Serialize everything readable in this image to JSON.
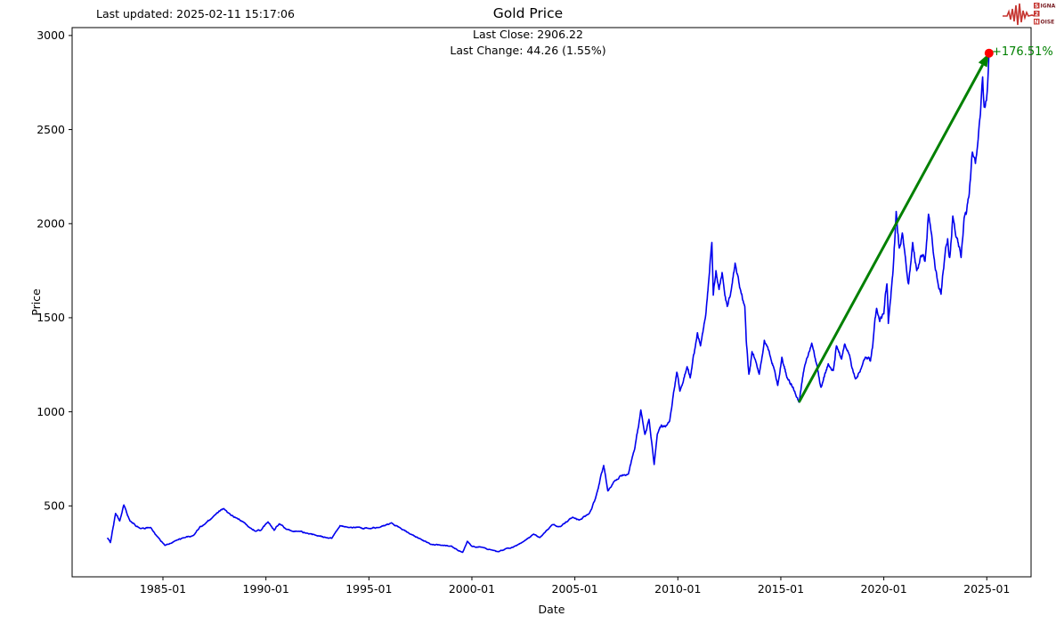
{
  "header": {
    "last_updated": "Last updated: 2025-02-11 15:17:06",
    "title": "Gold Price",
    "subtitle_line1": "Last Close: 2906.22",
    "subtitle_line2": "Last Change: 44.26 (1.55%)"
  },
  "logo": {
    "word1_boxed": "S",
    "word1_rest": "IGNAL",
    "word2_boxed": "2",
    "word3_boxed": "N",
    "word3_rest": "OISE",
    "wave_color": "#c5342f",
    "text_color": "#7a2026",
    "box_color": "#c5342f"
  },
  "chart_data": {
    "type": "line",
    "title": "Gold Price",
    "xlabel": "Date",
    "ylabel": "Price",
    "grid": false,
    "legend": "none",
    "line_color": "#0000ee",
    "line_width": 1.6,
    "xlim": [
      1980.59,
      2027.15
    ],
    "ylim": [
      123,
      3042
    ],
    "x_ticks": {
      "labels": [
        "1985-01",
        "1990-01",
        "1995-01",
        "2000-01",
        "2005-01",
        "2010-01",
        "2015-01",
        "2020-01",
        "2025-01"
      ],
      "years": [
        1985,
        1990,
        1995,
        2000,
        2005,
        2010,
        2015,
        2020,
        2025
      ]
    },
    "y_ticks": [
      500,
      1000,
      1500,
      2000,
      2500,
      3000
    ],
    "series": [
      {
        "name": "Gold Price",
        "x": [
          1982.3,
          1982.45,
          1982.7,
          1982.9,
          1983.1,
          1983.4,
          1983.9,
          1984.4,
          1984.7,
          1985.1,
          1985.6,
          1986.0,
          1986.5,
          1986.8,
          1987.0,
          1987.5,
          1987.95,
          1988.3,
          1988.6,
          1988.9,
          1989.2,
          1989.5,
          1989.75,
          1990.1,
          1990.4,
          1990.65,
          1991.0,
          1991.5,
          1992.0,
          1992.5,
          1993.0,
          1993.2,
          1993.6,
          1994.0,
          1994.5,
          1995.0,
          1995.5,
          1996.1,
          1996.5,
          1997.0,
          1997.5,
          1998.0,
          1998.5,
          1999.0,
          1999.55,
          1999.78,
          2000.0,
          2000.5,
          2001.0,
          2001.3,
          2001.7,
          2002.0,
          2002.5,
          2003.0,
          2003.3,
          2003.9,
          2004.3,
          2004.9,
          2005.2,
          2005.7,
          2006.0,
          2006.4,
          2006.6,
          2006.9,
          2007.2,
          2007.6,
          2007.9,
          2008.2,
          2008.4,
          2008.6,
          2008.85,
          2009.0,
          2009.2,
          2009.4,
          2009.6,
          2009.95,
          2010.1,
          2010.45,
          2010.6,
          2010.95,
          2011.1,
          2011.35,
          2011.65,
          2011.72,
          2011.85,
          2012.0,
          2012.15,
          2012.4,
          2012.55,
          2012.78,
          2013.0,
          2013.25,
          2013.32,
          2013.45,
          2013.6,
          2013.75,
          2013.95,
          2014.2,
          2014.5,
          2014.7,
          2014.85,
          2015.05,
          2015.3,
          2015.6,
          2015.88,
          2016.15,
          2016.5,
          2016.75,
          2016.95,
          2017.3,
          2017.55,
          2017.7,
          2017.95,
          2018.1,
          2018.3,
          2018.62,
          2018.9,
          2019.1,
          2019.35,
          2019.45,
          2019.65,
          2019.8,
          2020.0,
          2020.15,
          2020.22,
          2020.45,
          2020.6,
          2020.75,
          2020.9,
          2021.05,
          2021.2,
          2021.4,
          2021.6,
          2021.8,
          2022.0,
          2022.17,
          2022.4,
          2022.6,
          2022.78,
          2023.0,
          2023.1,
          2023.2,
          2023.35,
          2023.5,
          2023.75,
          2023.9,
          2024.0,
          2024.15,
          2024.3,
          2024.45,
          2024.6,
          2024.8,
          2024.87,
          2024.95,
          2025.02,
          2025.11
        ],
        "values": [
          330,
          305,
          460,
          420,
          505,
          420,
          380,
          385,
          340,
          290,
          315,
          330,
          345,
          390,
          400,
          450,
          486,
          450,
          435,
          415,
          385,
          365,
          370,
          415,
          370,
          405,
          375,
          365,
          355,
          340,
          330,
          328,
          395,
          385,
          387,
          380,
          385,
          410,
          385,
          350,
          325,
          295,
          290,
          287,
          253,
          312,
          285,
          280,
          265,
          257,
          275,
          280,
          310,
          350,
          332,
          400,
          390,
          440,
          425,
          460,
          540,
          715,
          580,
          630,
          660,
          670,
          800,
          1010,
          880,
          960,
          720,
          880,
          930,
          920,
          950,
          1210,
          1110,
          1240,
          1180,
          1420,
          1350,
          1510,
          1900,
          1620,
          1750,
          1650,
          1740,
          1560,
          1620,
          1790,
          1660,
          1560,
          1380,
          1200,
          1320,
          1280,
          1200,
          1380,
          1290,
          1220,
          1140,
          1290,
          1180,
          1130,
          1051,
          1240,
          1365,
          1250,
          1130,
          1255,
          1220,
          1350,
          1280,
          1360,
          1310,
          1175,
          1230,
          1290,
          1270,
          1340,
          1550,
          1480,
          1520,
          1680,
          1470,
          1750,
          2065,
          1870,
          1950,
          1820,
          1680,
          1900,
          1750,
          1830,
          1800,
          2050,
          1850,
          1700,
          1625,
          1870,
          1920,
          1820,
          2040,
          1930,
          1820,
          2030,
          2050,
          2160,
          2380,
          2320,
          2480,
          2780,
          2620,
          2650,
          2700,
          2906.22
        ]
      }
    ],
    "trend_arrow": {
      "start": {
        "x": 2015.88,
        "y": 1050.9
      },
      "end": {
        "x": 2025.11,
        "y": 2906.22
      },
      "color": "#008000",
      "width": 3
    },
    "end_marker": {
      "x": 2025.11,
      "y": 2906.22,
      "color": "#ff0000",
      "radius": 5
    },
    "annotations": [
      {
        "text": "+176.51%",
        "color": "#008000"
      }
    ]
  }
}
